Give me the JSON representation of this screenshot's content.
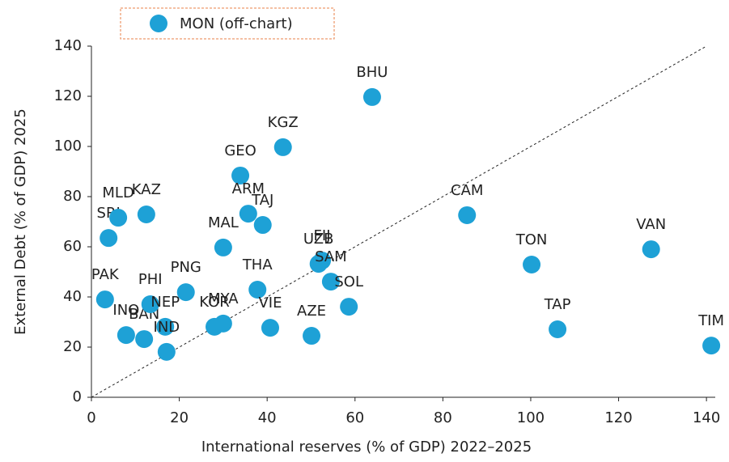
{
  "chart_data": {
    "type": "scatter",
    "x_label": "International reserves (% of GDP) 2022–2025",
    "y_label": "External Debt (% of GDP) 2025",
    "legend": "MON (off-chart)",
    "color": "#1ea1d6",
    "labels": [
      "SRI",
      "MLD",
      "KAZ",
      "PAK",
      "INO",
      "BAN",
      "PHI",
      "NEP",
      "IND",
      "PNG",
      "MAL",
      "GEO",
      "ARM",
      "TAJ",
      "KGZ",
      "BHU",
      "KOR",
      "MYA",
      "THA",
      "VIE",
      "AZE",
      "FIJ",
      "UZB",
      "SAM",
      "SOL",
      "CAM",
      "TON",
      "TAP",
      "VAN",
      "TIM"
    ],
    "x": [
      3.9,
      6.1,
      12.5,
      3.1,
      7.9,
      12.0,
      13.4,
      16.8,
      17.1,
      21.5,
      30.0,
      33.9,
      35.7,
      39.0,
      43.6,
      63.9,
      28.0,
      30.0,
      37.8,
      40.7,
      50.1,
      52.5,
      51.7,
      54.5,
      58.6,
      85.5,
      100.2,
      106.1,
      127.4,
      141.1
    ],
    "y": [
      63.5,
      71.6,
      72.9,
      39.0,
      24.8,
      23.2,
      37.1,
      28.1,
      18.1,
      41.9,
      59.7,
      88.4,
      73.2,
      68.7,
      99.7,
      119.7,
      28.1,
      29.4,
      42.9,
      27.7,
      24.5,
      54.5,
      53.2,
      46.1,
      36.1,
      72.6,
      52.9,
      27.1,
      59.0,
      20.6
    ],
    "xlim": [
      0,
      142
    ],
    "ylim": [
      0,
      140
    ],
    "xticks": [
      0,
      20,
      40,
      60,
      80,
      100,
      120,
      140
    ],
    "yticks": [
      0,
      20,
      40,
      60,
      80,
      100,
      120,
      140
    ]
  }
}
